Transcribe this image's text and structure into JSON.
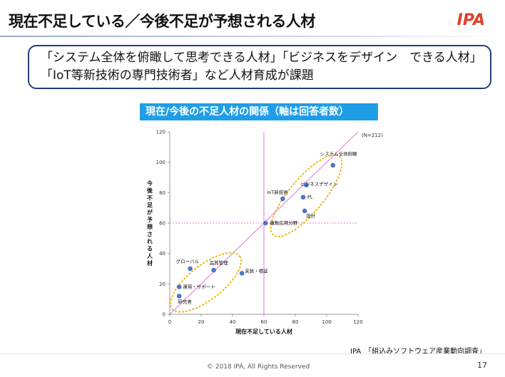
{
  "slide": {
    "title": "現在不足している／今後不足が予想される人材",
    "logo": "IPA",
    "callout": "「システム全体を俯瞰して思考できる人材」「ビジネスをデザイン　できる人材」「IoT等新技術の専門技術者」など人材育成が課題",
    "source": "IPA　「組込みソフトウェア産業動向調査」",
    "copyright": "© 2018 IPA, All Rights Reserved",
    "page_number": "17"
  },
  "chart_data": {
    "type": "scatter",
    "title": "現在/今後の不足人材の関係（軸は回答者数）",
    "xlabel": "現在不足している人材",
    "ylabel": "今後不足が予想される人材",
    "note": "(N=212)",
    "xlim": [
      0,
      120
    ],
    "ylim": [
      0,
      120
    ],
    "xticks": [
      0,
      20,
      40,
      60,
      80,
      100,
      120
    ],
    "yticks": [
      0,
      20,
      40,
      60,
      80,
      100,
      120
    ],
    "reference_lines": {
      "x": 60,
      "y": 60,
      "diagonal": true
    },
    "colors": {
      "point": "#4a76c4",
      "lines": "#d957c9",
      "ellipse": "#f0b400"
    },
    "points": [
      {
        "label": "システム全体俯瞰",
        "x": 104,
        "y": 98
      },
      {
        "label": "ビジネスデザイン",
        "x": 87,
        "y": 85
      },
      {
        "label": "PL",
        "x": 85,
        "y": 77
      },
      {
        "label": "IoT新技術",
        "x": 72,
        "y": 76
      },
      {
        "label": "設計",
        "x": 86,
        "y": 68
      },
      {
        "label": "複数応用分野",
        "x": 61,
        "y": 60
      },
      {
        "label": "グローバル",
        "x": 13,
        "y": 30
      },
      {
        "label": "品質管理",
        "x": 28,
        "y": 29
      },
      {
        "label": "実装・検証",
        "x": 46,
        "y": 27
      },
      {
        "label": "運用・サポート",
        "x": 6,
        "y": 18
      },
      {
        "label": "研究者",
        "x": 6,
        "y": 12
      }
    ]
  }
}
